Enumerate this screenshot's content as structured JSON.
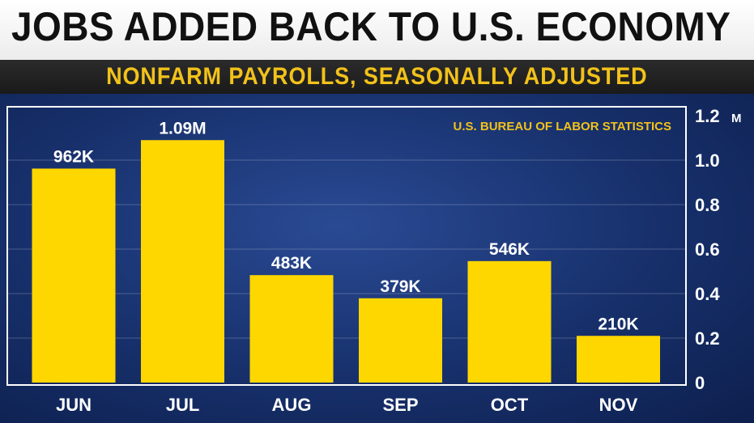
{
  "headline": "JOBS ADDED BACK TO U.S. ECONOMY",
  "subtitle": "NONFARM PAYROLLS, SEASONALLY ADJUSTED",
  "source": "U.S. BUREAU OF LABOR STATISTICS",
  "colors": {
    "bar": "#ffd700",
    "panel": "#17306b",
    "subtitle_text": "#f2c21a",
    "text": "#ffffff"
  },
  "chart_data": {
    "type": "bar",
    "title": "JOBS ADDED BACK TO U.S. ECONOMY",
    "subtitle": "NONFARM PAYROLLS, SEASONALLY ADJUSTED",
    "categories": [
      "JUN",
      "JUL",
      "AUG",
      "SEP",
      "OCT",
      "NOV"
    ],
    "values": [
      0.962,
      1.09,
      0.483,
      0.379,
      0.546,
      0.21
    ],
    "data_labels": [
      "962K",
      "1.09M",
      "483K",
      "379K",
      "546K",
      "210K"
    ],
    "y_unit": "M",
    "ylim": [
      0,
      1.2
    ],
    "yticks": [
      0,
      0.2,
      0.4,
      0.6,
      0.8,
      1.0,
      1.2
    ],
    "ytick_labels": [
      "0",
      "0.2",
      "0.4",
      "0.6",
      "0.8",
      "1.0",
      "1.2"
    ],
    "y_axis_side": "right",
    "grid": true,
    "legend": "none",
    "annotation": "U.S. BUREAU OF LABOR STATISTICS"
  }
}
